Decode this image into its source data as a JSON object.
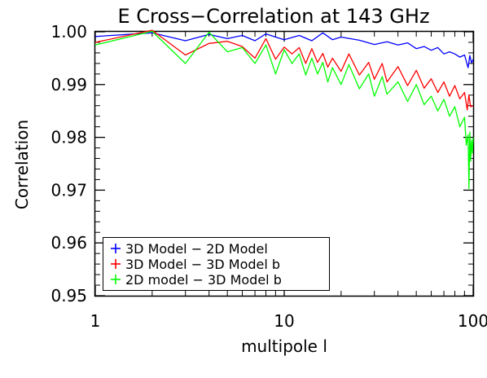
{
  "chart_data": {
    "type": "line",
    "title": "E Cross−Correlation at 143 GHz",
    "xlabel": "multipole l",
    "ylabel": "Correlation",
    "xscale": "log",
    "xlim": [
      1,
      100
    ],
    "ylim": [
      0.95,
      1.0
    ],
    "xticks": [
      1,
      10,
      100
    ],
    "xtick_labels": [
      "1",
      "10",
      "100"
    ],
    "yticks": [
      0.95,
      0.96,
      0.97,
      0.98,
      0.99,
      1.0
    ],
    "ytick_labels": [
      "0.95",
      "0.96",
      "0.97",
      "0.98",
      "0.99",
      "1.00"
    ],
    "grid": false,
    "legend_position": "bottom-left",
    "series": [
      {
        "name": "3D Model − 2D Model",
        "color": "#0000ff",
        "x": [
          1,
          2,
          3,
          4,
          5,
          6,
          7,
          8,
          9,
          10,
          12,
          14,
          16,
          18,
          20,
          25,
          30,
          35,
          40,
          45,
          50,
          55,
          60,
          65,
          70,
          75,
          80,
          85,
          90,
          94,
          96,
          98,
          100
        ],
        "y": [
          0.9991,
          0.9998,
          0.9983,
          0.9995,
          0.9987,
          0.9993,
          0.9983,
          0.9996,
          0.999,
          0.9985,
          0.9993,
          0.9983,
          0.9998,
          0.9985,
          0.999,
          0.9984,
          0.9976,
          0.9981,
          0.9975,
          0.9979,
          0.9968,
          0.9972,
          0.9965,
          0.997,
          0.9958,
          0.9962,
          0.9958,
          0.9952,
          0.9956,
          0.9932,
          0.9955,
          0.9941,
          0.9948
        ]
      },
      {
        "name": "3D Model − 3D Model b",
        "color": "#ff0000",
        "x": [
          1,
          2,
          3,
          4,
          5,
          6,
          7,
          8,
          9,
          10,
          11,
          12,
          13,
          14,
          15,
          16,
          17,
          18,
          20,
          22,
          25,
          28,
          30,
          33,
          35,
          40,
          45,
          50,
          55,
          60,
          65,
          70,
          75,
          80,
          85,
          90,
          93,
          95,
          97,
          100
        ],
        "y": [
          0.998,
          1.0003,
          0.9956,
          0.9978,
          0.9982,
          0.9972,
          0.995,
          0.9987,
          0.9948,
          0.9971,
          0.9958,
          0.997,
          0.994,
          0.9968,
          0.9942,
          0.9959,
          0.9933,
          0.995,
          0.9925,
          0.9958,
          0.9918,
          0.9942,
          0.991,
          0.994,
          0.9905,
          0.9934,
          0.9898,
          0.9927,
          0.9893,
          0.9911,
          0.9885,
          0.9905,
          0.9878,
          0.9898,
          0.9873,
          0.9885,
          0.9852,
          0.988,
          0.9858,
          0.986
        ]
      },
      {
        "name": "2D model − 3D Model b",
        "color": "#00ff00",
        "x": [
          1,
          2,
          3,
          4,
          5,
          6,
          7,
          8,
          9,
          10,
          11,
          12,
          13,
          14,
          15,
          16,
          17,
          18,
          20,
          22,
          25,
          28,
          30,
          33,
          35,
          40,
          45,
          50,
          55,
          60,
          65,
          70,
          75,
          80,
          85,
          90,
          92,
          94,
          95,
          96,
          97,
          98,
          99,
          100
        ],
        "y": [
          0.9975,
          1.0001,
          0.994,
          0.9999,
          0.9962,
          0.997,
          0.994,
          0.9975,
          0.992,
          0.9966,
          0.994,
          0.9958,
          0.9918,
          0.995,
          0.992,
          0.9942,
          0.9905,
          0.9932,
          0.99,
          0.9938,
          0.9892,
          0.992,
          0.9878,
          0.9915,
          0.9882,
          0.9905,
          0.9868,
          0.99,
          0.9862,
          0.9878,
          0.985,
          0.9872,
          0.984,
          0.9858,
          0.982,
          0.9838,
          0.9785,
          0.9805,
          0.9703,
          0.981,
          0.9755,
          0.9795,
          0.977,
          0.98
        ]
      }
    ]
  }
}
